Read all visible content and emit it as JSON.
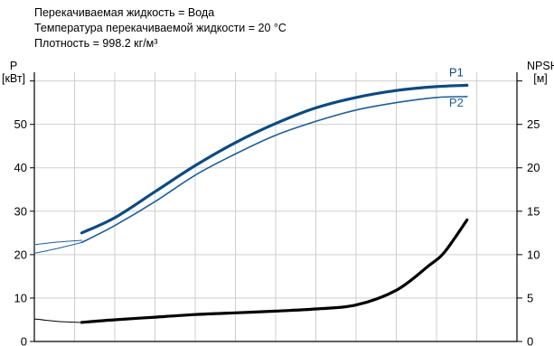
{
  "header": {
    "line1": "Перекачиваемая жидкость = Вода",
    "line2": "Температура перекачиваемой жидкости = 20 °C",
    "line3": "Плотность = 998.2 кг/м³"
  },
  "axes": {
    "left_title_1": "P",
    "left_title_2": "[кВт]",
    "right_title_1": "NPSH",
    "right_title_2": "[м]"
  },
  "chart_data": {
    "type": "line",
    "y_left": {
      "label": "P [кВт]",
      "ticks": [
        0,
        10,
        20,
        30,
        40,
        50
      ],
      "range": [
        0,
        62
      ]
    },
    "y_right": {
      "label": "NPSH [м]",
      "ticks": [
        0,
        5,
        10,
        15,
        20,
        25
      ],
      "range": [
        0,
        31
      ]
    },
    "x": {
      "range": [
        0,
        12
      ],
      "gridlines": [
        1,
        2,
        3,
        4,
        5,
        6,
        7,
        8,
        9,
        10,
        11
      ],
      "tick_labels": []
    },
    "grid": true,
    "series": [
      {
        "name": "P1",
        "axis": "left",
        "color": "#0d4a80",
        "width": 3.2,
        "x": [
          1.18,
          2.0,
          3.0,
          4.0,
          5.0,
          6.0,
          7.0,
          8.0,
          9.0,
          10.0,
          10.76
        ],
        "y": [
          25.0,
          28.5,
          34.5,
          40.5,
          45.8,
          50.2,
          53.8,
          56.2,
          57.8,
          58.7,
          59.0
        ]
      },
      {
        "name": "P2",
        "axis": "left",
        "color": "#1e5e99",
        "width": 1.6,
        "x": [
          1.18,
          2.0,
          3.0,
          4.0,
          5.0,
          6.0,
          7.0,
          8.0,
          9.0,
          10.0,
          10.76
        ],
        "y": [
          22.8,
          26.7,
          32.2,
          38.3,
          43.2,
          47.5,
          50.7,
          53.3,
          55.0,
          56.2,
          56.4
        ]
      },
      {
        "name": "P2-extension",
        "axis": "left",
        "color": "#1e5e99",
        "width": 1.0,
        "x": [
          0.0,
          0.6,
          1.18
        ],
        "y": [
          22.3,
          22.9,
          23.3
        ]
      },
      {
        "name": "P2-lower-extension",
        "axis": "left",
        "color": "#1e5e99",
        "width": 1.0,
        "x": [
          0.0,
          0.6,
          1.18
        ],
        "y": [
          20.3,
          21.5,
          22.8
        ]
      },
      {
        "name": "NPSH",
        "axis": "right",
        "color": "#000000",
        "width": 3.2,
        "x": [
          1.18,
          2.0,
          3.0,
          4.0,
          5.0,
          6.0,
          7.0,
          8.0,
          9.0,
          9.8,
          10.2,
          10.76
        ],
        "y": [
          2.2,
          2.5,
          2.8,
          3.1,
          3.3,
          3.5,
          3.75,
          4.2,
          5.9,
          8.7,
          10.3,
          14.0
        ]
      },
      {
        "name": "NPSH-extension",
        "axis": "right",
        "color": "#000000",
        "width": 1.0,
        "x": [
          0.0,
          0.6,
          1.18
        ],
        "y": [
          2.6,
          2.3,
          2.2
        ]
      }
    ],
    "labels": [
      {
        "text": "P1",
        "series": "P1"
      },
      {
        "text": "P2",
        "series": "P2"
      }
    ]
  }
}
